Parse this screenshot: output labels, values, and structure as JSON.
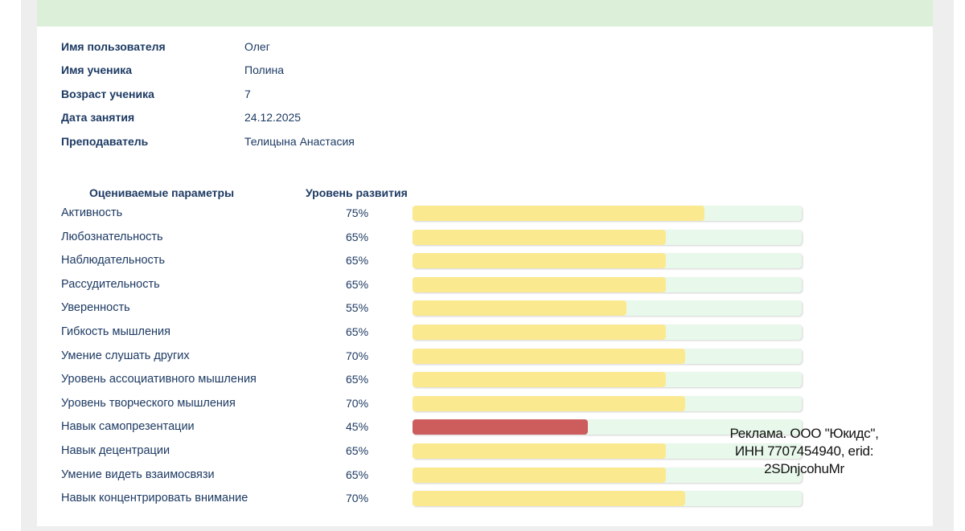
{
  "colors": {
    "header_bg": "#dcefd9",
    "text": "#1d3a63",
    "bar_track": "#e8f8ea",
    "bar_fill_normal": "#fbe990",
    "bar_fill_low": "#cd5c5c"
  },
  "info": [
    {
      "label": "Имя пользователя",
      "value": "Олег"
    },
    {
      "label": "Имя ученика",
      "value": "Полина"
    },
    {
      "label": "Возраст ученика",
      "value": "7"
    },
    {
      "label": "Дата занятия",
      "value": "24.12.2025"
    },
    {
      "label": "Преподаватель",
      "value": "Телицына Анастасия"
    }
  ],
  "table": {
    "header_params": "Оцениваемые параметры",
    "header_level": "Уровень развития",
    "rows": [
      {
        "name": "Активность",
        "percent_label": "75%",
        "value": 75,
        "status": "normal"
      },
      {
        "name": "Любознательность",
        "percent_label": "65%",
        "value": 65,
        "status": "normal"
      },
      {
        "name": "Наблюдательность",
        "percent_label": "65%",
        "value": 65,
        "status": "normal"
      },
      {
        "name": "Рассудительность",
        "percent_label": "65%",
        "value": 65,
        "status": "normal"
      },
      {
        "name": "Уверенность",
        "percent_label": "55%",
        "value": 55,
        "status": "normal"
      },
      {
        "name": "Гибкость мышления",
        "percent_label": "65%",
        "value": 65,
        "status": "normal"
      },
      {
        "name": "Умение слушать других",
        "percent_label": "70%",
        "value": 70,
        "status": "normal"
      },
      {
        "name": "Уровень ассоциативного мышления",
        "percent_label": "65%",
        "value": 65,
        "status": "normal"
      },
      {
        "name": "Уровень творческого мышления",
        "percent_label": "70%",
        "value": 70,
        "status": "normal"
      },
      {
        "name": "Навык самопрезентации",
        "percent_label": "45%",
        "value": 45,
        "status": "low"
      },
      {
        "name": "Навык децентрации",
        "percent_label": "65%",
        "value": 65,
        "status": "normal"
      },
      {
        "name": "Умение видеть взаимосвязи",
        "percent_label": "65%",
        "value": 65,
        "status": "normal"
      },
      {
        "name": "Навык концентрировать внимание",
        "percent_label": "70%",
        "value": 70,
        "status": "normal"
      }
    ]
  },
  "ad": {
    "text": "Реклама. ООО \"Юкидс\",\nИНН 7707454940, erid:\n2SDnjcohuMr"
  }
}
